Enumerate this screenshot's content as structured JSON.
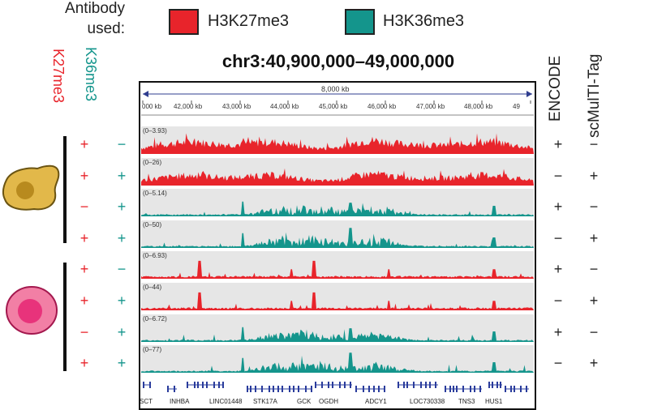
{
  "legend": {
    "title": "Antibody used:",
    "items": [
      {
        "label": "H3K27me3",
        "color": "#e8242b"
      },
      {
        "label": "H3K36me3",
        "color": "#14958c"
      }
    ]
  },
  "region_label": "chr3:40,900,000–49,000,000",
  "column_headers": {
    "k27": "K27me3",
    "k36": "K36me3",
    "encode": "ENCODE",
    "scmultitag": "scMulTI-Tag"
  },
  "ruler": {
    "span_label": "8,000 kb",
    "ticks": [
      "000 kb",
      "42,000 kb",
      "43,000 kb",
      "44,000 kb",
      "45,000 kb",
      "46,000 kb",
      "47,000 kb",
      "48,000 kb",
      "49"
    ]
  },
  "tracks": [
    {
      "range": "(0–3.93)",
      "mark": "H3K27me3",
      "k27": "+",
      "k36": "−",
      "encode": "+",
      "scmultitag": "−"
    },
    {
      "range": "(0–26)",
      "mark": "H3K27me3",
      "k27": "+",
      "k36": "+",
      "encode": "−",
      "scmultitag": "+"
    },
    {
      "range": "(0–5.14)",
      "mark": "H3K36me3",
      "k27": "−",
      "k36": "+",
      "encode": "+",
      "scmultitag": "−"
    },
    {
      "range": "(0–50)",
      "mark": "H3K36me3",
      "k27": "+",
      "k36": "+",
      "encode": "−",
      "scmultitag": "+"
    },
    {
      "range": "(0–6.93)",
      "mark": "H3K27me3",
      "k27": "+",
      "k36": "−",
      "encode": "+",
      "scmultitag": "−"
    },
    {
      "range": "(0–44)",
      "mark": "H3K27me3",
      "k27": "+",
      "k36": "+",
      "encode": "−",
      "scmultitag": "+"
    },
    {
      "range": "(0–6.72)",
      "mark": "H3K36me3",
      "k27": "−",
      "k36": "+",
      "encode": "+",
      "scmultitag": "−"
    },
    {
      "range": "(0–77)",
      "mark": "H3K36me3",
      "k27": "+",
      "k36": "+",
      "encode": "−",
      "scmultitag": "+"
    }
  ],
  "genes": [
    "SCT",
    "INHBA",
    "LINC01448",
    "STK17A",
    "GCK",
    "OGDH",
    "ADCY1",
    "LOC730338",
    "TNS3",
    "HUS1"
  ],
  "colors": {
    "k27": "#e8242b",
    "k36": "#14958c",
    "track_bg": "#e6e6e6",
    "gene": "#2a3c9c",
    "cell1_fill": "#e2b84a",
    "cell1_nucleus": "#b88a1e",
    "cell2_fill": "#f27fa5",
    "cell2_nucleus": "#e8337b"
  }
}
